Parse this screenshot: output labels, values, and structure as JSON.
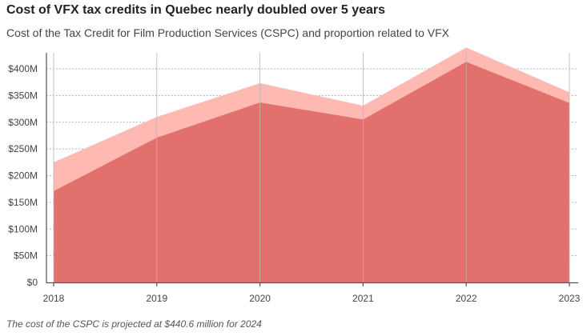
{
  "header": {
    "title": "Cost of VFX tax credits in Quebec nearly doubled over 5 years",
    "subtitle": "Cost of the Tax Credit for Film Production Services (CSPC) and proportion related to VFX"
  },
  "footer": {
    "note": "The cost of the CSPC is projected at $440.6 million for 2024"
  },
  "colors": {
    "total": "#fdb9b2",
    "vfx": "#e2706c",
    "grid": "#9a9a9a",
    "axis": "#555555"
  },
  "chart_data": {
    "type": "area",
    "title": "Cost of VFX tax credits in Quebec nearly doubled over 5 years",
    "subtitle": "Cost of the Tax Credit for Film Production Services (CSPC) and proportion related to VFX",
    "x": [
      "2018",
      "2019",
      "2020",
      "2021",
      "2022",
      "2023"
    ],
    "series": [
      {
        "values": [
          225,
          310,
          373,
          331,
          440,
          356
        ]
      },
      {
        "values": [
          171,
          271,
          337,
          305,
          413,
          336
        ]
      }
    ],
    "ylim": [
      0,
      430
    ],
    "yticks": [
      0,
      50,
      100,
      150,
      200,
      250,
      300,
      350,
      400
    ],
    "ytick_labels": [
      "$0",
      "$50M",
      "$100M",
      "$150M",
      "$200M",
      "$250M",
      "$300M",
      "$350M",
      "$400M"
    ],
    "xlabel": "",
    "ylabel": "",
    "grid": true,
    "legend": "none"
  }
}
